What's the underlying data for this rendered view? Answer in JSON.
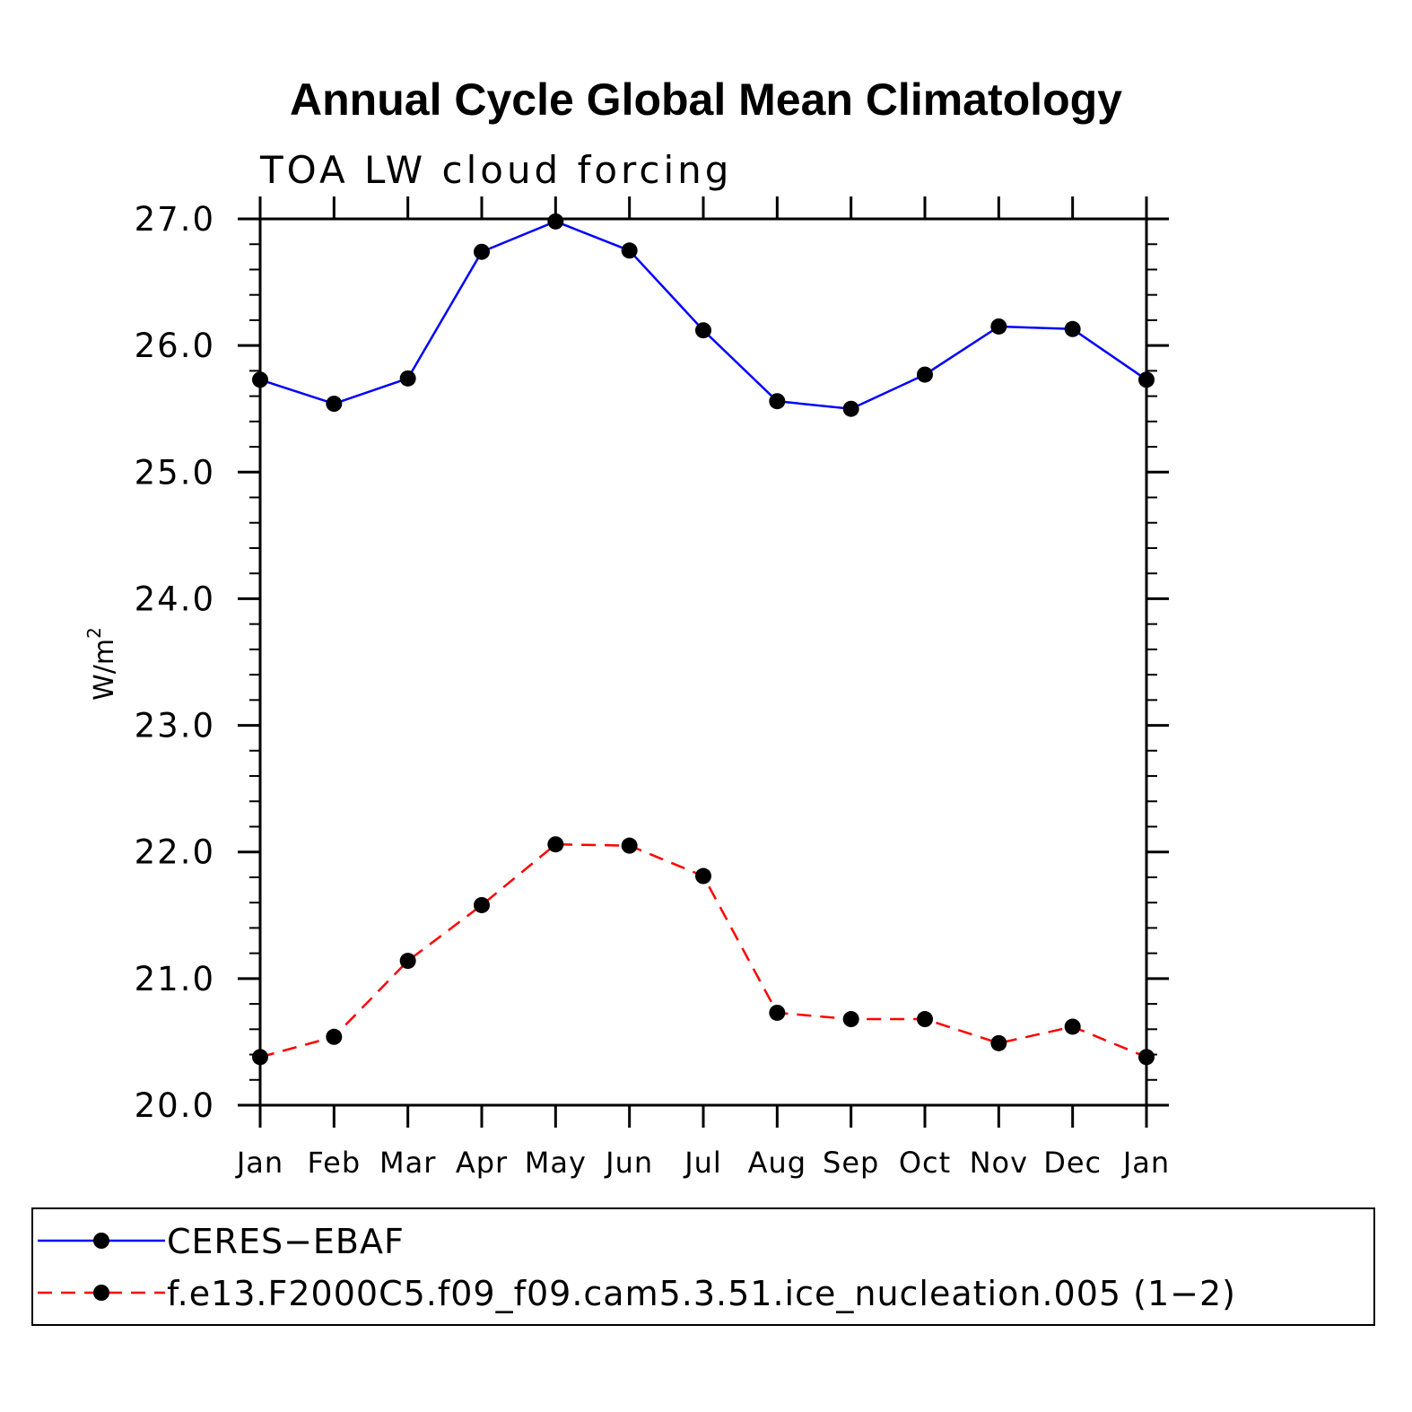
{
  "chart_data": {
    "type": "line",
    "title": "Annual Cycle Global Mean Climatology",
    "subtitle": "TOA LW cloud forcing",
    "ylabel_main": "W/m",
    "ylabel_sup": "2",
    "ylim": [
      20.0,
      27.0
    ],
    "yticks": [
      "20.0",
      "21.0",
      "22.0",
      "23.0",
      "24.0",
      "25.0",
      "26.0",
      "27.0"
    ],
    "categories": [
      "Jan",
      "Feb",
      "Mar",
      "Apr",
      "May",
      "Jun",
      "Jul",
      "Aug",
      "Sep",
      "Oct",
      "Nov",
      "Dec",
      "Jan"
    ],
    "series": [
      {
        "name": "CERES−EBAF",
        "color": "#0000ff",
        "dash": "solid",
        "values": [
          25.73,
          25.54,
          25.74,
          26.74,
          26.98,
          26.75,
          26.12,
          25.56,
          25.5,
          25.77,
          26.15,
          26.13,
          25.73
        ]
      },
      {
        "name": "f.e13.F2000C5.f09_f09.cam5.3.51.ice_nucleation.005 (1−2)",
        "color": "#ff0000",
        "dash": "dashed",
        "values": [
          20.38,
          20.54,
          21.14,
          21.58,
          22.06,
          22.05,
          21.81,
          20.73,
          20.68,
          20.68,
          20.49,
          20.62,
          20.38
        ]
      }
    ],
    "legend_position": "bottom"
  }
}
